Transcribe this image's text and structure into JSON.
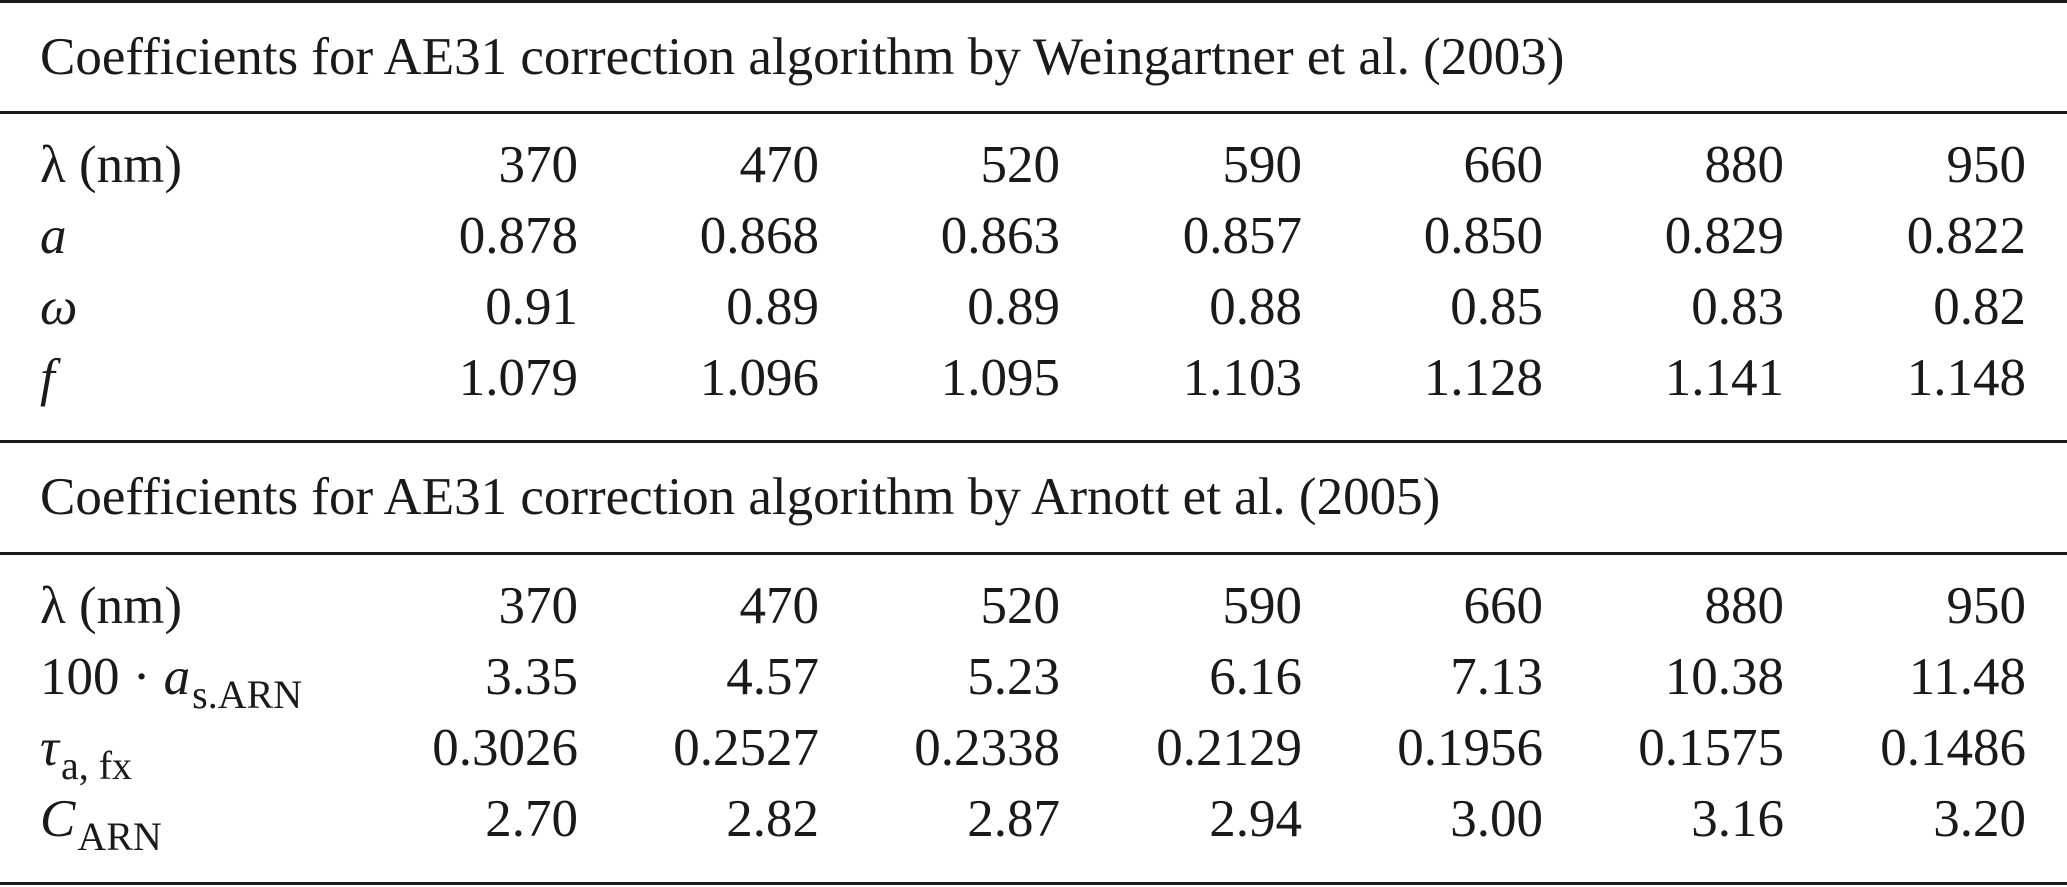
{
  "table1": {
    "caption": "Coefficients for AE31 correction algorithm by Weingartner et al. (2003)",
    "rows": [
      {
        "label": "λ (nm)",
        "values": [
          "370",
          "470",
          "520",
          "590",
          "660",
          "880",
          "950"
        ]
      },
      {
        "label": "a",
        "values": [
          "0.878",
          "0.868",
          "0.863",
          "0.857",
          "0.850",
          "0.829",
          "0.822"
        ]
      },
      {
        "label": "ω",
        "values": [
          "0.91",
          "0.89",
          "0.89",
          "0.88",
          "0.85",
          "0.83",
          "0.82"
        ]
      },
      {
        "label": "f",
        "values": [
          "1.079",
          "1.096",
          "1.095",
          "1.103",
          "1.128",
          "1.141",
          "1.148"
        ]
      }
    ]
  },
  "table2": {
    "caption": "Coefficients for AE31 correction algorithm by Arnott et al. (2005)",
    "rows": [
      {
        "label": "λ (nm)",
        "values": [
          "370",
          "470",
          "520",
          "590",
          "660",
          "880",
          "950"
        ]
      },
      {
        "label_prefix": "100 · ",
        "label_main": "a",
        "label_sub": "s.ARN",
        "values": [
          "3.35",
          "4.57",
          "5.23",
          "6.16",
          "7.13",
          "10.38",
          "11.48"
        ]
      },
      {
        "label_main": "τ",
        "label_sub": "a, fx",
        "values": [
          "0.3026",
          "0.2527",
          "0.2338",
          "0.2129",
          "0.1956",
          "0.1575",
          "0.1486"
        ]
      },
      {
        "label_main": "C",
        "label_sub": "ARN",
        "values": [
          "2.70",
          "2.82",
          "2.87",
          "2.94",
          "3.00",
          "3.16",
          "3.20"
        ]
      }
    ]
  }
}
